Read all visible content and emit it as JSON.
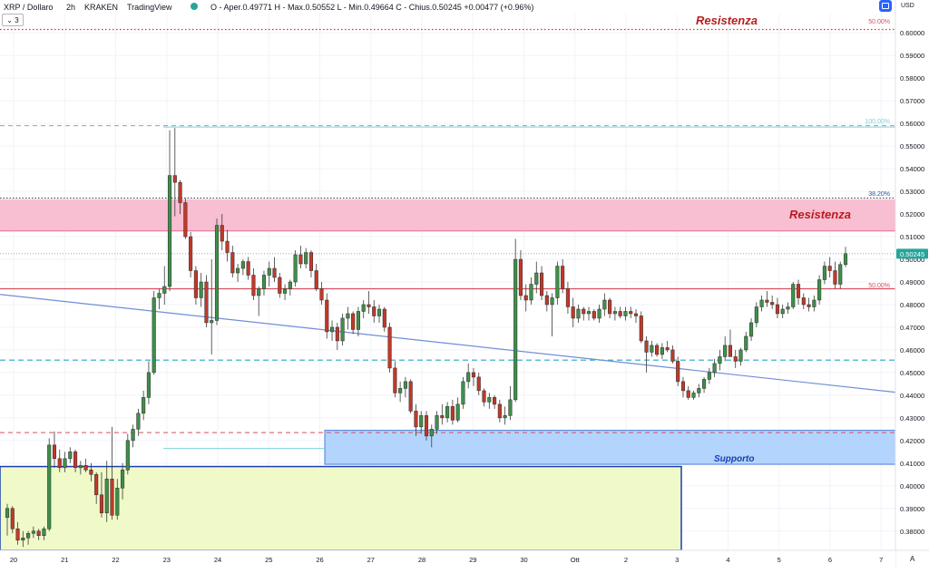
{
  "header": {
    "symbol": "XRP / Dollaro",
    "interval": "2h",
    "exchange": "KRAKEN",
    "provider": "TradingView",
    "ohlc": "O - Aper.0.49771  H - Max.0.50552  L - Min.0.49664  C - Chius.0.50245  +0.00477 (+0.96%)",
    "collapse_label": "3",
    "currency": "USD"
  },
  "colors": {
    "up": "#26a69a",
    "up_body": "#3f8f4a",
    "down": "#c0392b",
    "resistance_zone": "#f8bbd0",
    "support_zone": "#b3d4fc",
    "yellow_zone": "#f0f9c8",
    "trendline": "#6f8fd6",
    "fib": "#e57373"
  },
  "chart_data": {
    "type": "candlestick",
    "ylim": [
      0.3715,
      0.6085
    ],
    "xlim": [
      20,
      7
    ],
    "y_ticks": [
      "0.60000",
      "0.59000",
      "0.58000",
      "0.57000",
      "0.56000",
      "0.55000",
      "0.54000",
      "0.53000",
      "0.52000",
      "0.51000",
      "0.50000",
      "0.49000",
      "0.48000",
      "0.47000",
      "0.46000",
      "0.45000",
      "0.44000",
      "0.43000",
      "0.42000",
      "0.41000",
      "0.40000",
      "0.39000",
      "0.38000"
    ],
    "x_ticks": [
      "20",
      "21",
      "22",
      "23",
      "24",
      "25",
      "26",
      "27",
      "28",
      "29",
      "30",
      "Ott",
      "2",
      "3",
      "4",
      "5",
      "6",
      "7"
    ],
    "last_price": "0.50245",
    "annotations": {
      "resistance_top": "Resistenza",
      "resistance_zone": "Resistenza",
      "support_zone": "Supporto",
      "fib_50_top": "50.00%",
      "fib_100": "100.00%",
      "fib_38": "38.20%",
      "fib_50_mid": "50.00%"
    },
    "levels": {
      "resistance_dotted": 0.6015,
      "fib_100": 0.559,
      "resistance_zone_low": 0.5125,
      "resistance_zone_high": 0.5265,
      "fib_50_line": 0.487,
      "cyan_dashed": 0.4555,
      "red_dashed": 0.4235,
      "support_zone_low": 0.4095,
      "support_zone_high": 0.4245,
      "yellow_zone_top": 0.4085,
      "trend_start": 0.4845,
      "trend_end": 0.4413
    },
    "candles": [
      [
        0.386,
        0.392,
        0.378,
        0.39
      ],
      [
        0.39,
        0.391,
        0.379,
        0.381
      ],
      [
        0.381,
        0.384,
        0.374,
        0.376
      ],
      [
        0.376,
        0.38,
        0.373,
        0.377
      ],
      [
        0.377,
        0.38,
        0.374,
        0.379
      ],
      [
        0.379,
        0.382,
        0.377,
        0.38
      ],
      [
        0.38,
        0.381,
        0.376,
        0.378
      ],
      [
        0.378,
        0.382,
        0.376,
        0.381
      ],
      [
        0.381,
        0.421,
        0.38,
        0.418
      ],
      [
        0.418,
        0.424,
        0.408,
        0.412
      ],
      [
        0.412,
        0.416,
        0.406,
        0.408
      ],
      [
        0.408,
        0.415,
        0.406,
        0.412
      ],
      [
        0.412,
        0.417,
        0.41,
        0.415
      ],
      [
        0.415,
        0.416,
        0.406,
        0.408
      ],
      [
        0.408,
        0.411,
        0.405,
        0.409
      ],
      [
        0.409,
        0.412,
        0.406,
        0.407
      ],
      [
        0.407,
        0.41,
        0.402,
        0.405
      ],
      [
        0.405,
        0.406,
        0.392,
        0.396
      ],
      [
        0.396,
        0.406,
        0.386,
        0.388
      ],
      [
        0.388,
        0.411,
        0.384,
        0.403
      ],
      [
        0.403,
        0.426,
        0.385,
        0.387
      ],
      [
        0.387,
        0.403,
        0.385,
        0.399
      ],
      [
        0.399,
        0.41,
        0.394,
        0.407
      ],
      [
        0.407,
        0.423,
        0.405,
        0.42
      ],
      [
        0.42,
        0.427,
        0.417,
        0.425
      ],
      [
        0.425,
        0.434,
        0.422,
        0.432
      ],
      [
        0.432,
        0.442,
        0.429,
        0.439
      ],
      [
        0.439,
        0.455,
        0.436,
        0.45
      ],
      [
        0.45,
        0.486,
        0.449,
        0.483
      ],
      [
        0.483,
        0.487,
        0.478,
        0.485
      ],
      [
        0.485,
        0.497,
        0.48,
        0.488
      ],
      [
        0.488,
        0.557,
        0.486,
        0.537
      ],
      [
        0.537,
        0.558,
        0.519,
        0.534
      ],
      [
        0.534,
        0.535,
        0.52,
        0.525
      ],
      [
        0.525,
        0.527,
        0.509,
        0.51
      ],
      [
        0.51,
        0.512,
        0.492,
        0.495
      ],
      [
        0.495,
        0.497,
        0.48,
        0.483
      ],
      [
        0.483,
        0.494,
        0.479,
        0.49
      ],
      [
        0.49,
        0.493,
        0.47,
        0.472
      ],
      [
        0.472,
        0.5,
        0.458,
        0.473
      ],
      [
        0.473,
        0.518,
        0.471,
        0.515
      ],
      [
        0.515,
        0.52,
        0.504,
        0.508
      ],
      [
        0.508,
        0.513,
        0.499,
        0.503
      ],
      [
        0.503,
        0.506,
        0.492,
        0.494
      ],
      [
        0.494,
        0.498,
        0.49,
        0.496
      ],
      [
        0.496,
        0.5,
        0.493,
        0.499
      ],
      [
        0.499,
        0.501,
        0.491,
        0.493
      ],
      [
        0.493,
        0.496,
        0.482,
        0.484
      ],
      [
        0.484,
        0.488,
        0.475,
        0.487
      ],
      [
        0.487,
        0.495,
        0.484,
        0.493
      ],
      [
        0.493,
        0.499,
        0.488,
        0.496
      ],
      [
        0.496,
        0.501,
        0.49,
        0.492
      ],
      [
        0.492,
        0.494,
        0.483,
        0.485
      ],
      [
        0.485,
        0.489,
        0.482,
        0.487
      ],
      [
        0.487,
        0.491,
        0.484,
        0.49
      ],
      [
        0.49,
        0.504,
        0.488,
        0.502
      ],
      [
        0.502,
        0.506,
        0.496,
        0.498
      ],
      [
        0.498,
        0.505,
        0.496,
        0.503
      ],
      [
        0.503,
        0.504,
        0.492,
        0.495
      ],
      [
        0.495,
        0.498,
        0.486,
        0.487
      ],
      [
        0.487,
        0.49,
        0.48,
        0.482
      ],
      [
        0.482,
        0.485,
        0.465,
        0.468
      ],
      [
        0.468,
        0.473,
        0.464,
        0.47
      ],
      [
        0.47,
        0.472,
        0.46,
        0.464
      ],
      [
        0.464,
        0.476,
        0.462,
        0.474
      ],
      [
        0.474,
        0.479,
        0.469,
        0.476
      ],
      [
        0.476,
        0.477,
        0.467,
        0.469
      ],
      [
        0.469,
        0.479,
        0.466,
        0.477
      ],
      [
        0.477,
        0.482,
        0.474,
        0.48
      ],
      [
        0.48,
        0.486,
        0.476,
        0.479
      ],
      [
        0.479,
        0.482,
        0.472,
        0.475
      ],
      [
        0.475,
        0.48,
        0.472,
        0.478
      ],
      [
        0.478,
        0.479,
        0.468,
        0.47
      ],
      [
        0.47,
        0.472,
        0.45,
        0.452
      ],
      [
        0.452,
        0.455,
        0.439,
        0.441
      ],
      [
        0.441,
        0.446,
        0.437,
        0.443
      ],
      [
        0.443,
        0.448,
        0.439,
        0.446
      ],
      [
        0.446,
        0.447,
        0.432,
        0.433
      ],
      [
        0.433,
        0.436,
        0.422,
        0.426
      ],
      [
        0.426,
        0.433,
        0.423,
        0.431
      ],
      [
        0.431,
        0.433,
        0.42,
        0.422
      ],
      [
        0.422,
        0.427,
        0.417,
        0.425
      ],
      [
        0.425,
        0.433,
        0.423,
        0.431
      ],
      [
        0.431,
        0.436,
        0.427,
        0.43
      ],
      [
        0.43,
        0.437,
        0.428,
        0.435
      ],
      [
        0.435,
        0.438,
        0.427,
        0.429
      ],
      [
        0.429,
        0.439,
        0.428,
        0.436
      ],
      [
        0.436,
        0.448,
        0.434,
        0.446
      ],
      [
        0.446,
        0.454,
        0.443,
        0.45
      ],
      [
        0.45,
        0.452,
        0.444,
        0.448
      ],
      [
        0.448,
        0.45,
        0.44,
        0.442
      ],
      [
        0.442,
        0.443,
        0.435,
        0.437
      ],
      [
        0.437,
        0.441,
        0.434,
        0.439
      ],
      [
        0.439,
        0.44,
        0.434,
        0.436
      ],
      [
        0.436,
        0.438,
        0.428,
        0.43
      ],
      [
        0.43,
        0.435,
        0.427,
        0.431
      ],
      [
        0.431,
        0.444,
        0.429,
        0.438
      ],
      [
        0.438,
        0.509,
        0.437,
        0.5
      ],
      [
        0.5,
        0.504,
        0.482,
        0.484
      ],
      [
        0.484,
        0.489,
        0.477,
        0.482
      ],
      [
        0.482,
        0.492,
        0.48,
        0.489
      ],
      [
        0.489,
        0.499,
        0.485,
        0.494
      ],
      [
        0.494,
        0.497,
        0.482,
        0.484
      ],
      [
        0.484,
        0.486,
        0.477,
        0.48
      ],
      [
        0.48,
        0.485,
        0.466,
        0.483
      ],
      [
        0.483,
        0.499,
        0.48,
        0.497
      ],
      [
        0.497,
        0.5,
        0.485,
        0.487
      ],
      [
        0.487,
        0.49,
        0.476,
        0.479
      ],
      [
        0.479,
        0.483,
        0.47,
        0.474
      ],
      [
        0.474,
        0.48,
        0.472,
        0.478
      ],
      [
        0.478,
        0.479,
        0.473,
        0.476
      ],
      [
        0.476,
        0.479,
        0.473,
        0.477
      ],
      [
        0.477,
        0.478,
        0.473,
        0.474
      ],
      [
        0.474,
        0.48,
        0.472,
        0.478
      ],
      [
        0.478,
        0.485,
        0.475,
        0.482
      ],
      [
        0.482,
        0.483,
        0.474,
        0.476
      ],
      [
        0.476,
        0.479,
        0.473,
        0.477
      ],
      [
        0.477,
        0.479,
        0.474,
        0.475
      ],
      [
        0.475,
        0.479,
        0.473,
        0.477
      ],
      [
        0.477,
        0.479,
        0.474,
        0.476
      ],
      [
        0.476,
        0.478,
        0.472,
        0.475
      ],
      [
        0.475,
        0.477,
        0.463,
        0.464
      ],
      [
        0.464,
        0.466,
        0.45,
        0.459
      ],
      [
        0.459,
        0.464,
        0.457,
        0.462
      ],
      [
        0.462,
        0.463,
        0.457,
        0.458
      ],
      [
        0.458,
        0.463,
        0.456,
        0.461
      ],
      [
        0.461,
        0.464,
        0.459,
        0.46
      ],
      [
        0.46,
        0.462,
        0.454,
        0.455
      ],
      [
        0.455,
        0.457,
        0.444,
        0.446
      ],
      [
        0.446,
        0.448,
        0.439,
        0.442
      ],
      [
        0.442,
        0.444,
        0.438,
        0.439
      ],
      [
        0.439,
        0.442,
        0.438,
        0.441
      ],
      [
        0.441,
        0.445,
        0.439,
        0.443
      ],
      [
        0.443,
        0.448,
        0.441,
        0.447
      ],
      [
        0.447,
        0.452,
        0.445,
        0.45
      ],
      [
        0.45,
        0.456,
        0.448,
        0.454
      ],
      [
        0.454,
        0.46,
        0.451,
        0.457
      ],
      [
        0.457,
        0.466,
        0.455,
        0.462
      ],
      [
        0.462,
        0.469,
        0.459,
        0.457
      ],
      [
        0.457,
        0.46,
        0.452,
        0.455
      ],
      [
        0.455,
        0.461,
        0.453,
        0.46
      ],
      [
        0.46,
        0.468,
        0.459,
        0.466
      ],
      [
        0.466,
        0.474,
        0.464,
        0.472
      ],
      [
        0.472,
        0.481,
        0.47,
        0.479
      ],
      [
        0.479,
        0.484,
        0.477,
        0.482
      ],
      [
        0.482,
        0.486,
        0.479,
        0.481
      ],
      [
        0.481,
        0.484,
        0.478,
        0.48
      ],
      [
        0.48,
        0.483,
        0.474,
        0.476
      ],
      [
        0.476,
        0.48,
        0.474,
        0.478
      ],
      [
        0.478,
        0.481,
        0.476,
        0.479
      ],
      [
        0.479,
        0.49,
        0.478,
        0.489
      ],
      [
        0.489,
        0.491,
        0.48,
        0.483
      ],
      [
        0.483,
        0.485,
        0.478,
        0.48
      ],
      [
        0.48,
        0.483,
        0.477,
        0.479
      ],
      [
        0.479,
        0.484,
        0.477,
        0.482
      ],
      [
        0.482,
        0.493,
        0.48,
        0.491
      ],
      [
        0.491,
        0.499,
        0.489,
        0.497
      ],
      [
        0.497,
        0.501,
        0.492,
        0.495
      ],
      [
        0.495,
        0.499,
        0.487,
        0.489
      ],
      [
        0.489,
        0.499,
        0.487,
        0.4977
      ],
      [
        0.4977,
        0.5055,
        0.4966,
        0.5025
      ]
    ]
  }
}
